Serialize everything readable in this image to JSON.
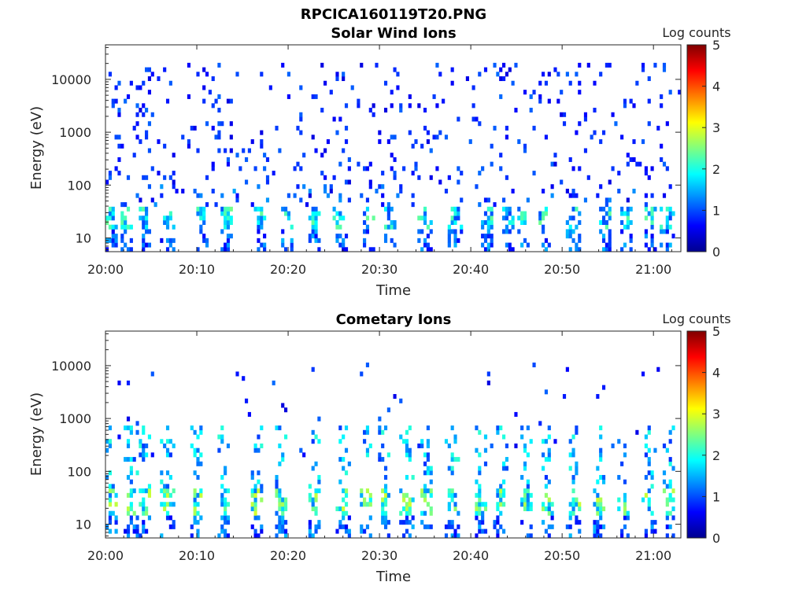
{
  "figure": {
    "title": "RPCICA160119T20.PNG"
  },
  "chart_data": [
    {
      "type": "heatmap",
      "title": "Solar Wind Ions",
      "xlabel": "Time",
      "ylabel": "Energy (eV)",
      "x_ticks": [
        "20:00",
        "20:10",
        "20:20",
        "20:30",
        "20:40",
        "20:50",
        "21:00"
      ],
      "x_tick_minutes": [
        0,
        10,
        20,
        30,
        40,
        50,
        60
      ],
      "xlim_minutes": [
        0,
        63
      ],
      "y_scale": "log",
      "ylim": [
        5.5,
        45000
      ],
      "y_ticks": [
        "10",
        "100",
        "1000",
        "10000"
      ],
      "y_tick_values": [
        10,
        100,
        1000,
        10000
      ],
      "colorbar": {
        "label": "Log counts",
        "range": [
          0,
          5
        ],
        "ticks": [
          "0",
          "1",
          "2",
          "3",
          "4",
          "5"
        ],
        "colormap": "jet"
      },
      "bursts_minutes": [
        0.5,
        2.2,
        4.3,
        6.8,
        10.5,
        13.2,
        16.8,
        20.0,
        23.0,
        25.7,
        28.8,
        31.0,
        35.0,
        38.3,
        41.8,
        44.0,
        45.7,
        48.0,
        51.2,
        54.8,
        57.0,
        59.8,
        61.5
      ],
      "burst_energy_ev": [
        14,
        40
      ],
      "peak_log_counts": 2.3,
      "background_energy_ev": [
        100,
        20000
      ],
      "background_log_counts": [
        0.3,
        1.0
      ]
    },
    {
      "type": "heatmap",
      "title": "Cometary Ions",
      "xlabel": "Time",
      "ylabel": "Energy (eV)",
      "x_ticks": [
        "20:00",
        "20:10",
        "20:20",
        "20:30",
        "20:40",
        "20:50",
        "21:00"
      ],
      "x_tick_minutes": [
        0,
        10,
        20,
        30,
        40,
        50,
        60
      ],
      "xlim_minutes": [
        0,
        63
      ],
      "y_scale": "log",
      "ylim": [
        5.5,
        45000
      ],
      "y_ticks": [
        "10",
        "100",
        "1000",
        "10000"
      ],
      "y_tick_values": [
        10,
        100,
        1000,
        10000
      ],
      "colorbar": {
        "label": "Log counts",
        "range": [
          0,
          5
        ],
        "ticks": [
          "0",
          "1",
          "2",
          "3",
          "4",
          "5"
        ],
        "colormap": "jet"
      },
      "bursts_minutes": [
        0.5,
        2.8,
        4.3,
        6.8,
        10.0,
        13.0,
        16.5,
        19.2,
        23.0,
        26.0,
        28.5,
        30.5,
        33.0,
        35.2,
        38.0,
        41.0,
        43.3,
        46.0,
        48.5,
        51.2,
        54.0,
        56.8,
        59.5,
        61.8
      ],
      "burst_energy_ev": [
        14,
        700
      ],
      "core_energy_ev": [
        15,
        50
      ],
      "peak_log_counts": 2.8,
      "background_energy_ev": [
        200,
        12000
      ],
      "background_log_counts": [
        0.3,
        1.0
      ]
    }
  ]
}
